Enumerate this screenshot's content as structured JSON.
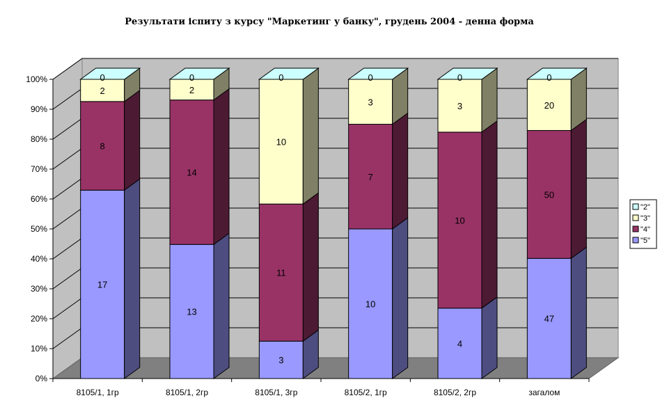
{
  "chart_data": {
    "type": "bar",
    "stacked": "percent",
    "title": "Результати іспиту з курсу \"Маркетинг  у банку\", грудень 2004 - денна форма",
    "categories": [
      "8105/1, 1гр",
      "8105/1, 2гр",
      "8105/1, 3гр",
      "8105/2, 1гр",
      "8105/2, 2гр",
      "загалом"
    ],
    "series": [
      {
        "name": "\"5\"",
        "values": [
          17,
          13,
          3,
          10,
          4,
          47
        ],
        "color": "#9999ff"
      },
      {
        "name": "\"4\"",
        "values": [
          8,
          14,
          11,
          7,
          10,
          50
        ],
        "color": "#993366"
      },
      {
        "name": "\"3\"",
        "values": [
          2,
          2,
          10,
          3,
          3,
          20
        ],
        "color": "#ffffcc"
      },
      {
        "name": "\"2\"",
        "values": [
          0,
          0,
          0,
          0,
          0,
          0
        ],
        "color": "#ccffff"
      }
    ],
    "yticks": [
      "0%",
      "10%",
      "20%",
      "30%",
      "40%",
      "50%",
      "60%",
      "70%",
      "80%",
      "90%",
      "100%"
    ],
    "ylim": [
      0,
      100
    ],
    "legend_position": "right",
    "grid": true,
    "three_d": true
  }
}
